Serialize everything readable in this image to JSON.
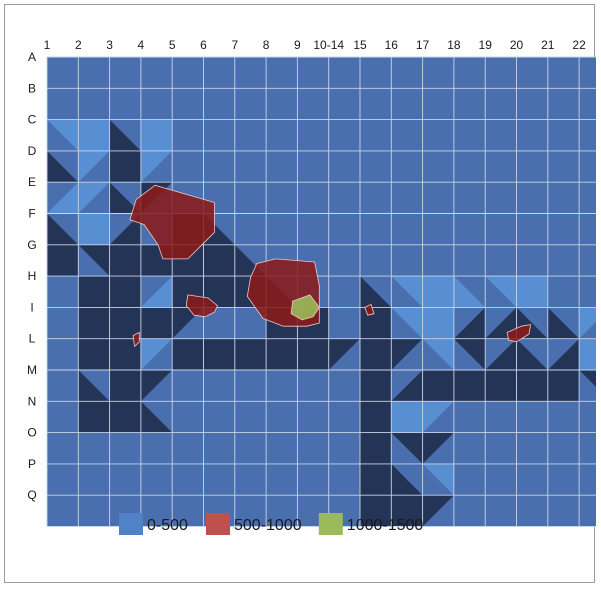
{
  "chart_data": {
    "type": "heatmap",
    "columns": [
      "1",
      "2",
      "3",
      "4",
      "5",
      "6",
      "7",
      "8",
      "9",
      "10-14",
      "15",
      "16",
      "17",
      "18",
      "19",
      "20",
      "21",
      "22"
    ],
    "rows": [
      "A",
      "B",
      "C",
      "D",
      "E",
      "F",
      "G",
      "H",
      "I",
      "L",
      "M",
      "N",
      "O",
      "P",
      "Q"
    ],
    "legend": [
      {
        "label": "0-500",
        "color": "#4f82c9"
      },
      {
        "label": "500-1000",
        "color": "#c0504d"
      },
      {
        "label": "1000-1500",
        "color": "#9bbb59"
      }
    ],
    "colors": {
      "base": "#4a6faf",
      "light": "#5b95d8",
      "dark": "#1f2e4c",
      "grid": "#c9d4e6",
      "red": "#8b1a18",
      "green": "#9bbb59"
    }
  }
}
